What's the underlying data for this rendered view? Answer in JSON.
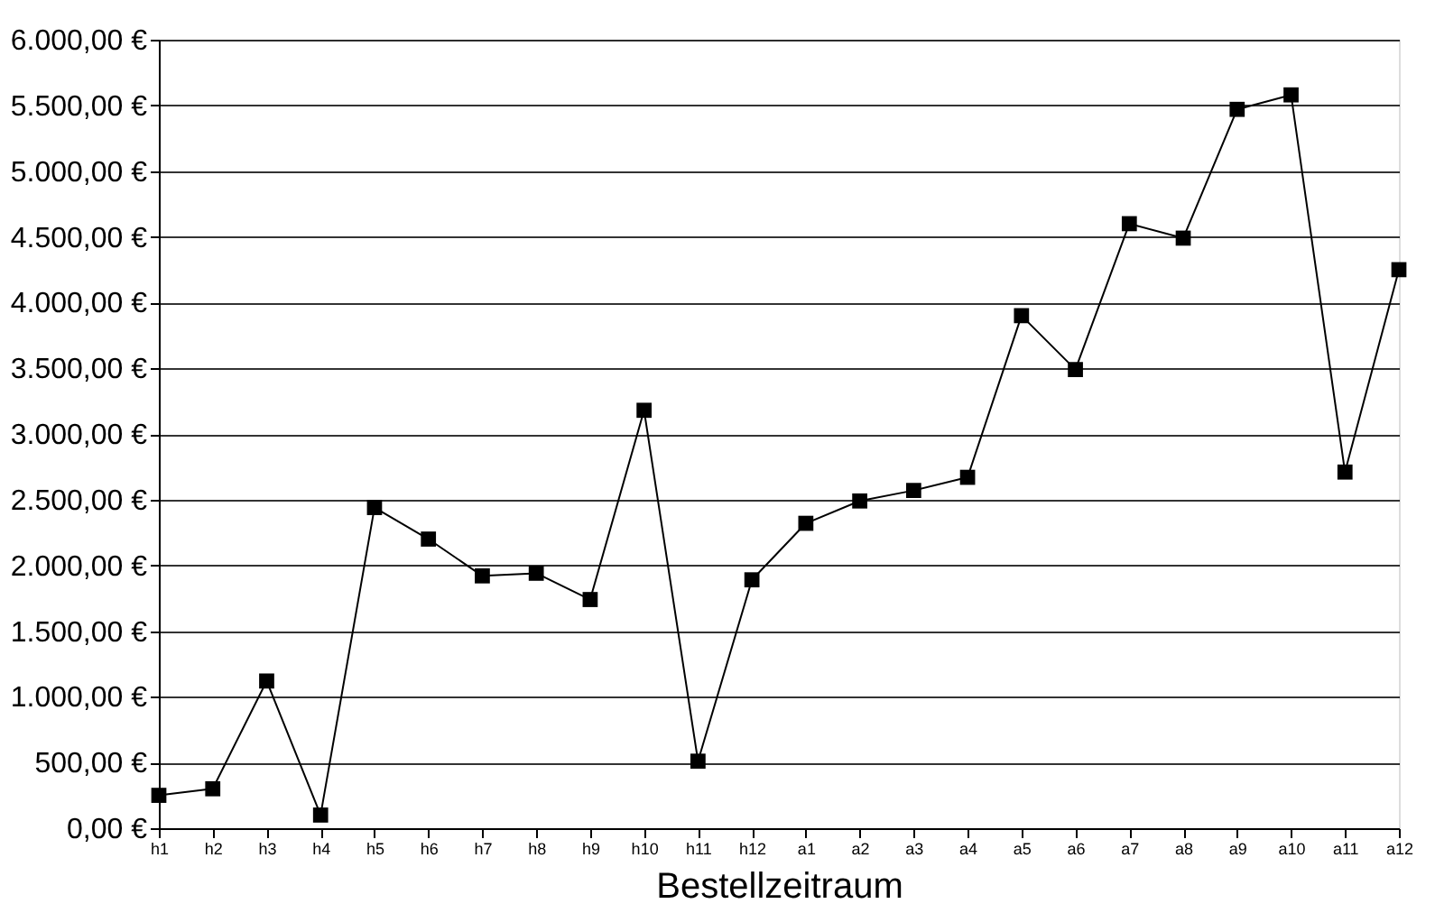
{
  "chart_data": {
    "type": "line",
    "xlabel": "Bestellzeitraum",
    "categories": [
      "h1",
      "h2",
      "h3",
      "h4",
      "h5",
      "h6",
      "h7",
      "h8",
      "h9",
      "h10",
      "h11",
      "h12",
      "a1",
      "a2",
      "a3",
      "a4",
      "a5",
      "a6",
      "a7",
      "a8",
      "a9",
      "a10",
      "a11",
      "a12"
    ],
    "series": [
      {
        "color": "#000000",
        "values": [
          250,
          300,
          1120,
          100,
          2440,
          2200,
          1920,
          1940,
          1740,
          3180,
          510,
          1890,
          2320,
          2490,
          2570,
          2670,
          3900,
          3490,
          4600,
          4490,
          5470,
          5580,
          2710,
          4250
        ]
      }
    ],
    "ylim": [
      0,
      6000
    ],
    "yticks": [
      {
        "value": 0,
        "label": "0,00 €"
      },
      {
        "value": 500,
        "label": "500,00 €"
      },
      {
        "value": 1000,
        "label": "1.000,00 €"
      },
      {
        "value": 1500,
        "label": "1.500,00 €"
      },
      {
        "value": 2000,
        "label": "2.000,00 €"
      },
      {
        "value": 2500,
        "label": "2.500,00 €"
      },
      {
        "value": 3000,
        "label": "3.000,00 €"
      },
      {
        "value": 3500,
        "label": "3.500,00 €"
      },
      {
        "value": 4000,
        "label": "4.000,00 €"
      },
      {
        "value": 4500,
        "label": "4.500,00 €"
      },
      {
        "value": 5000,
        "label": "5.000,00 €"
      },
      {
        "value": 5500,
        "label": "5.500,00 €"
      },
      {
        "value": 6000,
        "label": "6.000,00 €"
      }
    ],
    "grid": "y",
    "marker": "square",
    "line_style": "solid",
    "legend": false
  }
}
